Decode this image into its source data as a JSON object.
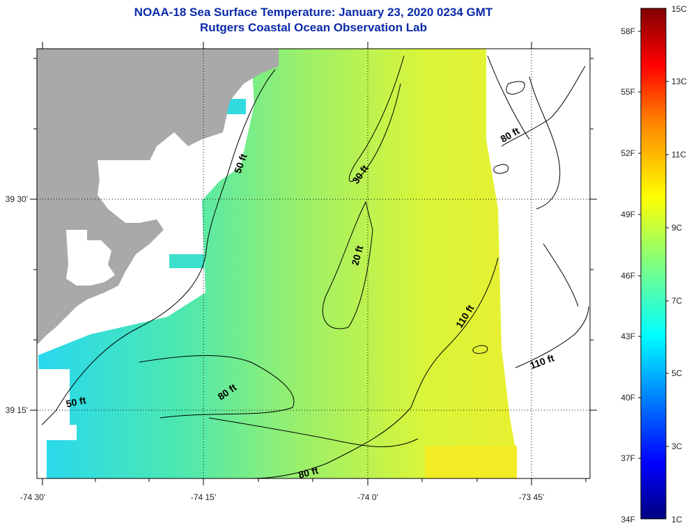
{
  "title": {
    "line1": "NOAA-18 Sea Surface Temperature:  January 23, 2020 0234 GMT",
    "line2": "Rutgers Coastal Ocean Observation Lab"
  },
  "map": {
    "lon_ticks": [
      "-74 30'",
      "-74 15'",
      "-74 0'",
      "-73 45'"
    ],
    "lat_ticks": [
      "39 30'",
      "39 15'"
    ],
    "contour_labels": [
      "50 ft",
      "30 ft",
      "20 ft",
      "80 ft",
      "110 ft",
      "110 ft",
      "50 ft",
      "80 ft",
      "80 ft"
    ],
    "colors": {
      "land": "#a9a9a9",
      "water_nodata": "#ffffff",
      "coastline": "#000000",
      "grid": "#000000"
    }
  },
  "colorbar": {
    "fahrenheit_labels": [
      "58F",
      "55F",
      "52F",
      "49F",
      "46F",
      "43F",
      "40F",
      "37F",
      "34F"
    ],
    "celsius_labels": [
      "15C",
      "13C",
      "11C",
      "9C",
      "7C",
      "5C",
      "3C",
      "1C"
    ],
    "colormap": [
      "#000080",
      "#0000ff",
      "#0080ff",
      "#00ffff",
      "#80ff80",
      "#ffff00",
      "#ff8000",
      "#ff0000",
      "#800000"
    ]
  }
}
